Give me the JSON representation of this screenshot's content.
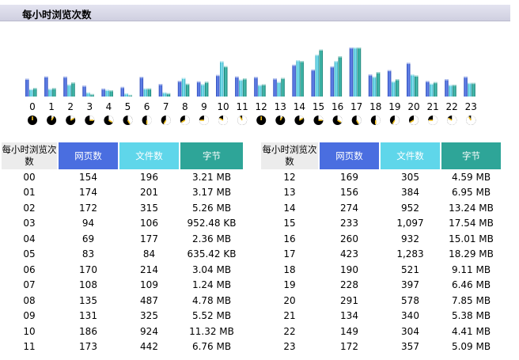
{
  "title": "每小时浏览次数",
  "colors": {
    "pages": "#4a6ee0",
    "files": "#5fd6ea",
    "bytes": "#2ea598"
  },
  "chart_data": {
    "type": "bar",
    "categories": [
      "0",
      "1",
      "2",
      "3",
      "4",
      "5",
      "6",
      "7",
      "8",
      "9",
      "10",
      "11",
      "12",
      "13",
      "14",
      "15",
      "16",
      "17",
      "18",
      "19",
      "20",
      "21",
      "22",
      "23"
    ],
    "series": [
      {
        "name": "网页数",
        "values": [
          154,
          174,
          172,
          94,
          69,
          83,
          170,
          108,
          135,
          131,
          186,
          173,
          169,
          156,
          274,
          233,
          260,
          423,
          190,
          228,
          291,
          134,
          149,
          172
        ]
      },
      {
        "name": "文件数",
        "values": [
          196,
          201,
          315,
          106,
          177,
          84,
          214,
          109,
          487,
          325,
          924,
          442,
          305,
          384,
          952,
          1097,
          932,
          1283,
          521,
          397,
          578,
          340,
          304,
          357
        ]
      },
      {
        "name": "字节",
        "values": [
          3.21,
          3.17,
          5.26,
          0.93,
          2.36,
          0.62,
          3.04,
          1.24,
          4.78,
          5.52,
          11.32,
          6.76,
          4.59,
          6.95,
          13.24,
          17.54,
          15.01,
          18.29,
          9.11,
          6.46,
          7.85,
          5.38,
          4.41,
          5.09
        ]
      }
    ]
  },
  "table": {
    "headers": {
      "hour": "每小时浏览次数",
      "pages": "网页数",
      "files": "文件数",
      "bytes": "字节"
    },
    "left": [
      [
        "00",
        "154",
        "196",
        "3.21 MB"
      ],
      [
        "01",
        "174",
        "201",
        "3.17 MB"
      ],
      [
        "02",
        "172",
        "315",
        "5.26 MB"
      ],
      [
        "03",
        "94",
        "106",
        "952.48 KB"
      ],
      [
        "04",
        "69",
        "177",
        "2.36 MB"
      ],
      [
        "05",
        "83",
        "84",
        "635.42 KB"
      ],
      [
        "06",
        "170",
        "214",
        "3.04 MB"
      ],
      [
        "07",
        "108",
        "109",
        "1.24 MB"
      ],
      [
        "08",
        "135",
        "487",
        "4.78 MB"
      ],
      [
        "09",
        "131",
        "325",
        "5.52 MB"
      ],
      [
        "10",
        "186",
        "924",
        "11.32 MB"
      ],
      [
        "11",
        "173",
        "442",
        "6.76 MB"
      ]
    ],
    "right": [
      [
        "12",
        "169",
        "305",
        "4.59 MB"
      ],
      [
        "13",
        "156",
        "384",
        "6.95 MB"
      ],
      [
        "14",
        "274",
        "952",
        "13.24 MB"
      ],
      [
        "15",
        "233",
        "1,097",
        "17.54 MB"
      ],
      [
        "16",
        "260",
        "932",
        "15.01 MB"
      ],
      [
        "17",
        "423",
        "1,283",
        "18.29 MB"
      ],
      [
        "18",
        "190",
        "521",
        "9.11 MB"
      ],
      [
        "19",
        "228",
        "397",
        "6.46 MB"
      ],
      [
        "20",
        "291",
        "578",
        "7.85 MB"
      ],
      [
        "21",
        "134",
        "340",
        "5.38 MB"
      ],
      [
        "22",
        "149",
        "304",
        "4.41 MB"
      ],
      [
        "23",
        "172",
        "357",
        "5.09 MB"
      ]
    ]
  }
}
